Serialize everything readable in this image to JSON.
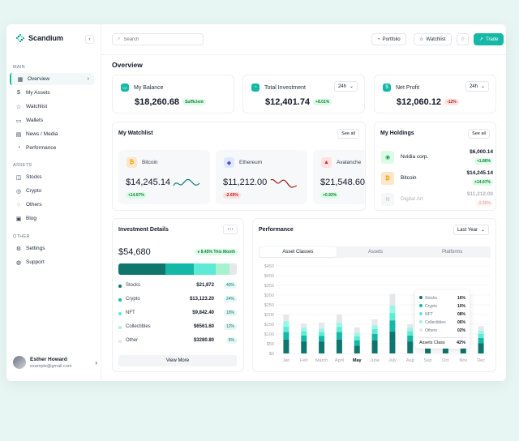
{
  "app": {
    "name": "Scandium"
  },
  "sidebar": {
    "sections": [
      {
        "title": "MAIN",
        "items": [
          {
            "label": "Overview",
            "icon": "grid-icon",
            "active": true
          },
          {
            "label": "My Assets",
            "icon": "dollar-circle-icon"
          },
          {
            "label": "Watchlist",
            "icon": "star-icon"
          },
          {
            "label": "Wallets",
            "icon": "wallet-icon"
          },
          {
            "label": "News / Media",
            "icon": "newspaper-icon"
          },
          {
            "label": "Performance",
            "icon": "pie-icon"
          }
        ]
      },
      {
        "title": "ASSETS",
        "items": [
          {
            "label": "Stocks",
            "icon": "stocks-icon"
          },
          {
            "label": "Crypto",
            "icon": "crypto-icon"
          },
          {
            "label": "Others",
            "icon": "others-icon"
          },
          {
            "label": "Blog",
            "icon": "blog-icon"
          }
        ]
      },
      {
        "title": "OTHER",
        "items": [
          {
            "label": "Settings",
            "icon": "gear-icon"
          },
          {
            "label": "Support",
            "icon": "support-icon"
          }
        ]
      }
    ],
    "user": {
      "name": "Esther Howard",
      "email": "example@gmail.com"
    }
  },
  "topbar": {
    "search_placeholder": "Search",
    "portfolio": "Portfolio",
    "watchlist": "Watchlist",
    "trade": "Trade"
  },
  "overview": {
    "title": "Overview",
    "balance": {
      "label": "My Balance",
      "value": "$18,260.68",
      "badge": "Sufficient"
    },
    "investment": {
      "label": "Total Investment",
      "value": "$12,401.74",
      "badge": "+8.01%",
      "period": "24h"
    },
    "profit": {
      "label": "Net Profit",
      "value": "$12,060.12",
      "badge": "-12%",
      "period": "24h"
    }
  },
  "watchlist": {
    "title": "My Watchlist",
    "see_all": "See all",
    "items": [
      {
        "name": "Bitcoin",
        "value": "$14,245.14",
        "change": "+14.67%",
        "up": true
      },
      {
        "name": "Ethereum",
        "value": "$11,212.00",
        "change": "-2.65%",
        "up": false
      },
      {
        "name": "Avalanche",
        "value": "$21,548.60",
        "change": "+0.92%",
        "up": true
      }
    ]
  },
  "holdings": {
    "title": "My Holdings",
    "see_all": "See all",
    "items": [
      {
        "name": "Nvidia corp.",
        "amount": "$6,000.14",
        "change": "+1.86%",
        "up": true
      },
      {
        "name": "Bitcoin",
        "amount": "$14,245.14",
        "change": "+14.67%",
        "up": true
      },
      {
        "name": "Digital Art",
        "amount": "$11,212.00",
        "change": "-2.65%",
        "up": false
      }
    ]
  },
  "investment_details": {
    "title": "Investment Details",
    "amount": "$54,680",
    "badge": "8.45% This Month",
    "view_more": "View More",
    "items": [
      {
        "label": "Stocks",
        "amount": "$21,872",
        "pct": "40%",
        "share": 40,
        "color": "#0f766e"
      },
      {
        "label": "Crypto",
        "amount": "$13,123.20",
        "pct": "24%",
        "share": 24,
        "color": "#14b8a6"
      },
      {
        "label": "NFT",
        "amount": "$9,842.40",
        "pct": "18%",
        "share": 18,
        "color": "#5eead4"
      },
      {
        "label": "Collectibles",
        "amount": "$6561.60",
        "pct": "12%",
        "share": 12,
        "color": "#a7f3d0"
      },
      {
        "label": "Other",
        "amount": "$3280.80",
        "pct": "6%",
        "share": 6,
        "color": "#e5e7eb"
      }
    ]
  },
  "performance": {
    "title": "Performance",
    "period": "Last Year",
    "tabs": [
      "Asset Classes",
      "Assets",
      "Platforms"
    ],
    "tooltip": {
      "rows": [
        {
          "label": "Stocks",
          "value": "16%",
          "color": "#0f766e"
        },
        {
          "label": "Crypto",
          "value": "10%",
          "color": "#14b8a6"
        },
        {
          "label": "NFT",
          "value": "08%",
          "color": "#5eead4"
        },
        {
          "label": "Collectibles",
          "value": "06%",
          "color": "#a7f3d0"
        },
        {
          "label": "Others",
          "value": "02%",
          "color": "#e5e7eb"
        }
      ],
      "footer_label": "Assets Class",
      "footer_value": "42%"
    }
  },
  "chart_data": {
    "type": "bar",
    "stacked": true,
    "categories": [
      "Jan",
      "Feb",
      "March",
      "April",
      "May",
      "June",
      "July",
      "Aug",
      "Sep",
      "Oct",
      "Nov",
      "Dec"
    ],
    "highlight": [
      "May"
    ],
    "yticks": [
      "$0",
      "$50",
      "$100",
      "$150",
      "$200",
      "$250",
      "$300",
      "$350",
      "$400",
      "$450"
    ],
    "ylim": [
      0,
      450
    ],
    "series": [
      {
        "name": "Stocks",
        "color": "#0f766e",
        "values": [
          72,
          62,
          62,
          72,
          40,
          68,
          112,
          62,
          88,
          62,
          72,
          52
        ]
      },
      {
        "name": "Crypto",
        "color": "#14b8a6",
        "values": [
          38,
          30,
          28,
          38,
          28,
          33,
          58,
          30,
          48,
          30,
          38,
          28
        ]
      },
      {
        "name": "NFT",
        "color": "#5eead4",
        "values": [
          28,
          22,
          20,
          26,
          20,
          24,
          38,
          22,
          34,
          20,
          26,
          20
        ]
      },
      {
        "name": "Collectibles",
        "color": "#99f6e4",
        "values": [
          28,
          18,
          18,
          22,
          18,
          20,
          38,
          18,
          40,
          18,
          22,
          18
        ]
      },
      {
        "name": "Others",
        "color": "#e5e7eb",
        "values": [
          34,
          22,
          30,
          42,
          28,
          30,
          60,
          18,
          45,
          26,
          34,
          22
        ]
      }
    ]
  }
}
